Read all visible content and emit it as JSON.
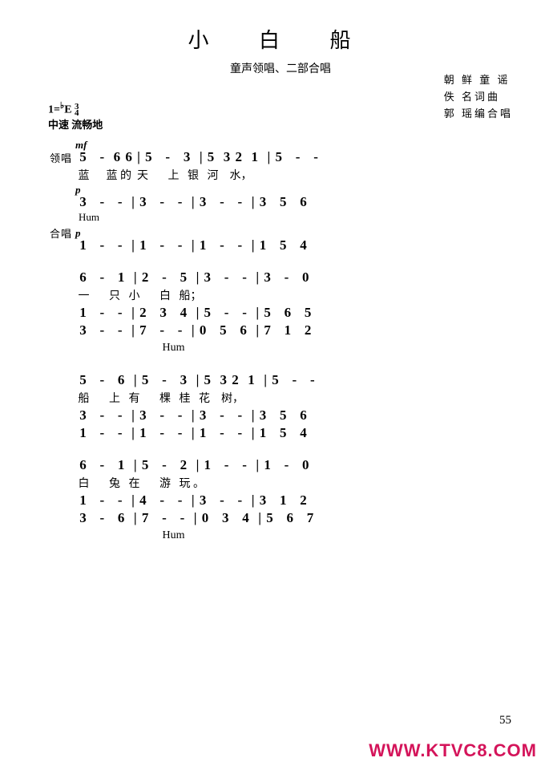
{
  "title": "小 白 船",
  "subtitle": "童声领唱、二部合唱",
  "credits": {
    "c1": "朝 鲜 童 谣",
    "c2": "佚   名词曲",
    "c3": "郭  瑶编合唱"
  },
  "key_line": "1=♭E 3/4",
  "tempo_text": "中速 流畅地",
  "dynamics": {
    "mf": "mf",
    "p": "p"
  },
  "part_labels": {
    "lead": "领唱",
    "chorus": "合唱"
  },
  "hum": "Hum",
  "sys1": {
    "lead_notes": " 5   -  6 6 | 5   -   3  | 5  3 2  1  | 5   -   -",
    "lead_lyrics": " 蓝      蓝 的  天       上   银   河    水，",
    "ch1_notes": " 3   -   -  | 3   -   -  | 3   -   -  | 3   5   6",
    "ch2_notes": " 1   -   -  | 1   -   -  | 1   -   -  | 1   5   4"
  },
  "sys2": {
    "lead_notes": " 6   -   1  | 2   -   5  | 3   -   -  | 3   -   0",
    "lead_lyrics": " 一       只   小       白   船；",
    "ch1_notes": " 1   -   -  | 2   3   4  | 5   -   -  | 5   6   5",
    "ch2_notes": " 3   -   -  | 7   -   -  | 0   5   6  | 7   1   2",
    "hum_pos": "                               Hum"
  },
  "sys3": {
    "lead_notes": " 5   -   6  | 5   -   3  | 5  3 2  1  | 5   -   -",
    "lead_lyrics": " 船       上   有       棵   桂   花    树，",
    "ch1_notes": " 3   -   -  | 3   -   -  | 3   -   -  | 3   5   6",
    "ch2_notes": " 1   -   -  | 1   -   -  | 1   -   -  | 1   5   4"
  },
  "sys4": {
    "lead_notes": " 6   -   1  | 5   -   2  | 1   -   -  | 1   -   0",
    "lead_lyrics": " 白       兔   在       游   玩 。",
    "ch1_notes": " 1   -   -  | 4   -   -  | 3   -   -  | 3   1   2",
    "ch2_notes": " 3   -   6  | 7   -   -  | 0   3   4  | 5   6   7",
    "hum_pos": "                               Hum"
  },
  "page_num": "55",
  "watermark": "WWW.KTVC8.COM"
}
